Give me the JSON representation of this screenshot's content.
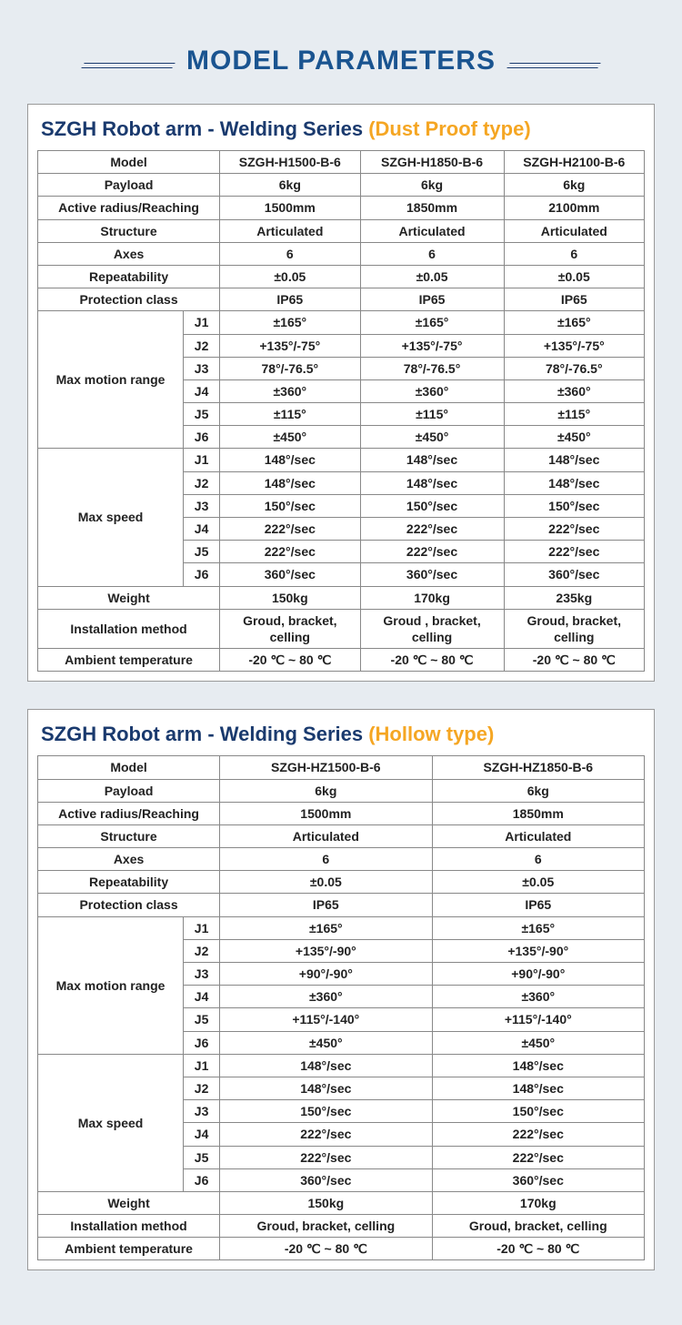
{
  "colors": {
    "title": "#1a5490",
    "title_dark": "#1a3a6e",
    "subtitle_orange": "#f5a623",
    "border": "#888888",
    "bg": "#ffffff"
  },
  "main_title": "MODEL PARAMETERS",
  "table1": {
    "title_main": "SZGH Robot arm - Welding Series ",
    "title_sub": "(Dust Proof type)",
    "header": [
      "Model",
      "SZGH-H1500-B-6",
      "SZGH-H1850-B-6",
      "SZGH-H2100-B-6"
    ],
    "simple_rows": [
      [
        "Payload",
        "6kg",
        "6kg",
        "6kg"
      ],
      [
        "Active radius/Reaching",
        "1500mm",
        "1850mm",
        "2100mm"
      ],
      [
        "Structure",
        "Articulated",
        "Articulated",
        "Articulated"
      ],
      [
        "Axes",
        "6",
        "6",
        "6"
      ],
      [
        "Repeatability",
        "±0.05",
        "±0.05",
        "±0.05"
      ],
      [
        "Protection class",
        "IP65",
        "IP65",
        "IP65"
      ]
    ],
    "motion_label": "Max motion range",
    "motion_rows": [
      [
        "J1",
        "±165°",
        "±165°",
        "±165°"
      ],
      [
        "J2",
        "+135°/-75°",
        "+135°/-75°",
        "+135°/-75°"
      ],
      [
        "J3",
        "78°/-76.5°",
        "78°/-76.5°",
        "78°/-76.5°"
      ],
      [
        "J4",
        "±360°",
        "±360°",
        "±360°"
      ],
      [
        "J5",
        "±115°",
        "±115°",
        "±115°"
      ],
      [
        "J6",
        "±450°",
        "±450°",
        "±450°"
      ]
    ],
    "speed_label": "Max speed",
    "speed_rows": [
      [
        "J1",
        "148°/sec",
        "148°/sec",
        "148°/sec"
      ],
      [
        "J2",
        "148°/sec",
        "148°/sec",
        "148°/sec"
      ],
      [
        "J3",
        "150°/sec",
        "150°/sec",
        "150°/sec"
      ],
      [
        "J4",
        "222°/sec",
        "222°/sec",
        "222°/sec"
      ],
      [
        "J5",
        "222°/sec",
        "222°/sec",
        "222°/sec"
      ],
      [
        "J6",
        "360°/sec",
        "360°/sec",
        "360°/sec"
      ]
    ],
    "bottom_rows": [
      [
        "Weight",
        "150kg",
        "170kg",
        "235kg"
      ],
      [
        "Installation method",
        "Groud, bracket, celling",
        "Groud , bracket, celling",
        "Groud, bracket, celling"
      ],
      [
        "Ambient temperature",
        "-20 ℃ ~ 80 ℃",
        "-20 ℃ ~ 80 ℃",
        "-20 ℃ ~ 80 ℃"
      ]
    ]
  },
  "table2": {
    "title_main": "SZGH Robot arm - Welding Series ",
    "title_sub": "(Hollow type)",
    "header": [
      "Model",
      "SZGH-HZ1500-B-6",
      "SZGH-HZ1850-B-6"
    ],
    "simple_rows": [
      [
        "Payload",
        "6kg",
        "6kg"
      ],
      [
        "Active radius/Reaching",
        "1500mm",
        "1850mm"
      ],
      [
        "Structure",
        "Articulated",
        "Articulated"
      ],
      [
        "Axes",
        "6",
        "6"
      ],
      [
        "Repeatability",
        "±0.05",
        "±0.05"
      ],
      [
        "Protection class",
        "IP65",
        "IP65"
      ]
    ],
    "motion_label": "Max motion range",
    "motion_rows": [
      [
        "J1",
        "±165°",
        "±165°"
      ],
      [
        "J2",
        "+135°/-90°",
        "+135°/-90°"
      ],
      [
        "J3",
        "+90°/-90°",
        "+90°/-90°"
      ],
      [
        "J4",
        "±360°",
        "±360°"
      ],
      [
        "J5",
        "+115°/-140°",
        "+115°/-140°"
      ],
      [
        "J6",
        "±450°",
        "±450°"
      ]
    ],
    "speed_label": "Max speed",
    "speed_rows": [
      [
        "J1",
        "148°/sec",
        "148°/sec"
      ],
      [
        "J2",
        "148°/sec",
        "148°/sec"
      ],
      [
        "J3",
        "150°/sec",
        "150°/sec"
      ],
      [
        "J4",
        "222°/sec",
        "222°/sec"
      ],
      [
        "J5",
        "222°/sec",
        "222°/sec"
      ],
      [
        "J6",
        "360°/sec",
        "360°/sec"
      ]
    ],
    "bottom_rows": [
      [
        "Weight",
        "150kg",
        "170kg"
      ],
      [
        "Installation method",
        "Groud, bracket, celling",
        "Groud, bracket, celling"
      ],
      [
        "Ambient temperature",
        "-20 ℃ ~ 80 ℃",
        "-20 ℃ ~ 80 ℃"
      ]
    ]
  }
}
